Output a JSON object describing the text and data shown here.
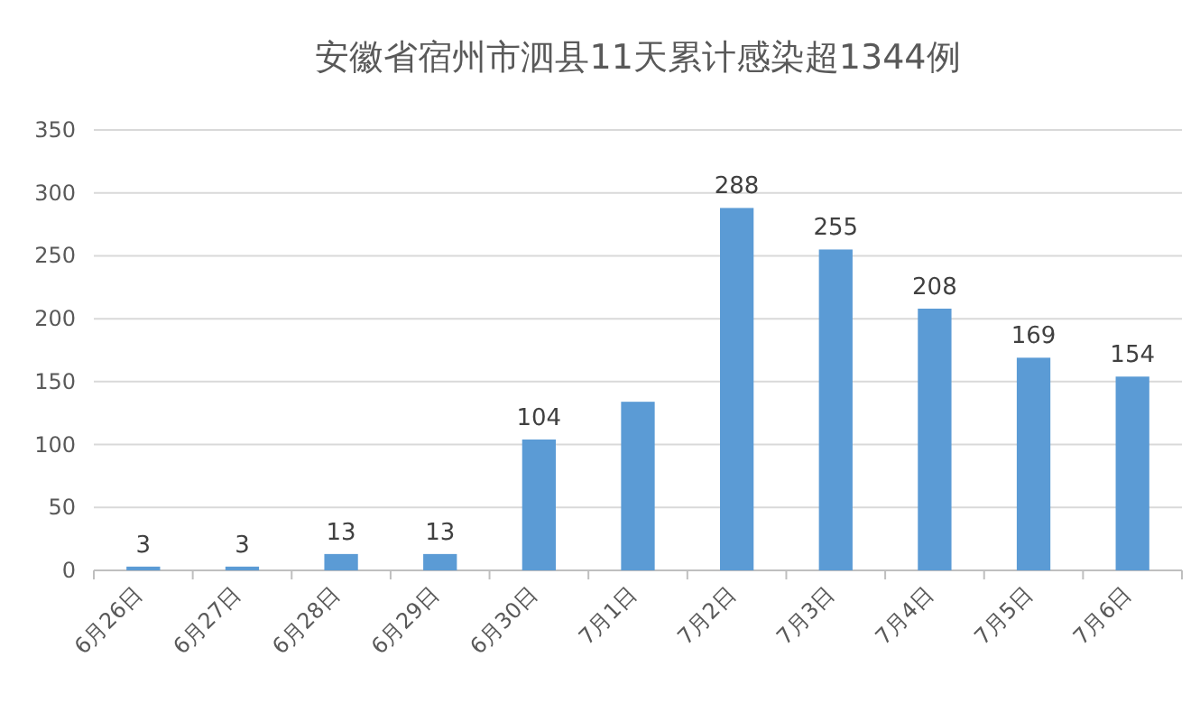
{
  "chart_data": {
    "type": "bar",
    "title": "安徽省宿州市泗县11天累计感染超1344例",
    "categories": [
      "6月26日",
      "6月27日",
      "6月28日",
      "6月29日",
      "6月30日",
      "7月1日",
      "7月2日",
      "7月3日",
      "7月4日",
      "7月5日",
      "7月6日"
    ],
    "values": [
      3,
      3,
      13,
      13,
      104,
      134,
      288,
      255,
      208,
      169,
      154
    ],
    "value_labels": [
      "3",
      "3",
      "13",
      "13",
      "104",
      null,
      "288",
      "255",
      "208",
      "169",
      "154"
    ],
    "color": "#5b9bd5",
    "ylim": [
      0,
      350
    ],
    "yticks": [
      0,
      50,
      100,
      150,
      200,
      250,
      300,
      350
    ],
    "grid": "y"
  }
}
